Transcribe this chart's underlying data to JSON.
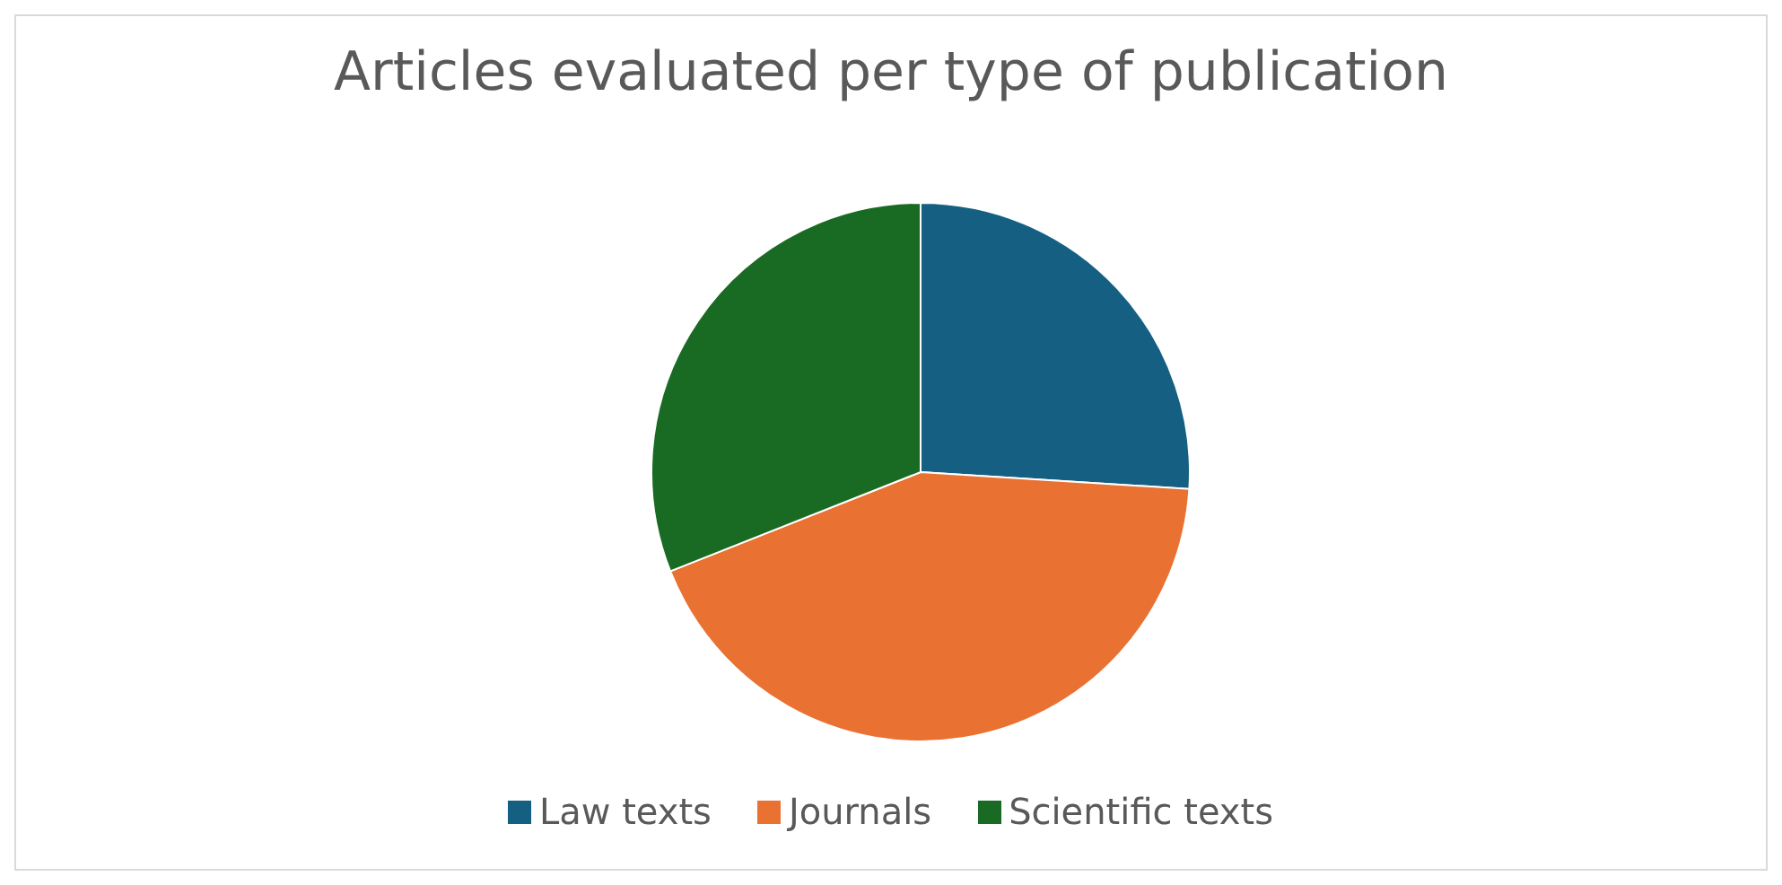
{
  "chart_data": {
    "type": "pie",
    "title": "Articles evaluated per type of publication",
    "categories": [
      "Law texts",
      "Journals",
      "Scientific texts"
    ],
    "values": [
      26,
      43,
      31
    ],
    "colors": [
      "#156082",
      "#e97132",
      "#196b24"
    ],
    "legend": "bottom"
  }
}
